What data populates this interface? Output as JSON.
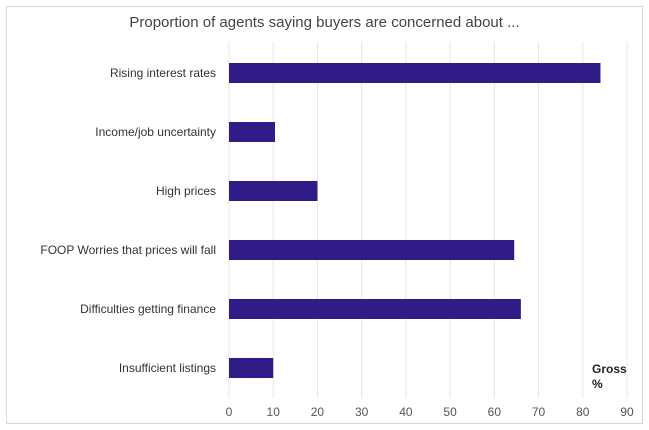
{
  "chart_data": {
    "type": "bar",
    "orientation": "horizontal",
    "title": "Proportion of agents saying buyers are concerned about ...",
    "categories": [
      "Rising interest rates",
      "Income/job uncertainty",
      "High prices",
      "FOOP Worries that prices will fall",
      "Difficulties getting finance",
      "Insufficient listings"
    ],
    "values": [
      84,
      10.4,
      20,
      64.5,
      66,
      10
    ],
    "xlim": [
      0,
      90
    ],
    "xticks": [
      0,
      10,
      20,
      30,
      40,
      50,
      60,
      70,
      80,
      90
    ],
    "unit_label": [
      "Gross",
      "%"
    ],
    "grid": true,
    "bar_color": "#311b87"
  }
}
